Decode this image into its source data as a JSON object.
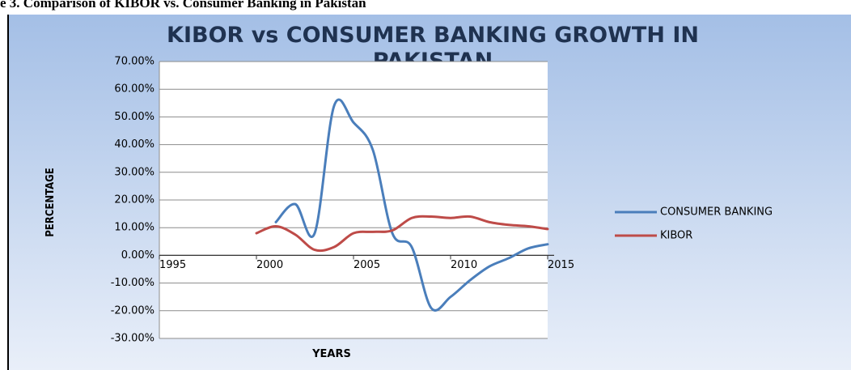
{
  "caption": "e 3. Comparison of KIBOR vs. Consumer Banking in Pakistan",
  "chart_data": {
    "type": "line",
    "title": [
      "KIBOR vs CONSUMER BANKING GROWTH IN",
      "PAKISTAN"
    ],
    "x_label": "YEARS",
    "y_label": "PERCENTAGE",
    "x": [
      2000,
      2001,
      2002,
      2003,
      2004,
      2005,
      2006,
      2007,
      2008,
      2009,
      2010,
      2011,
      2012,
      2013,
      2014,
      2015
    ],
    "series": [
      {
        "name": "CONSUMER BANKING",
        "color": "#4a7ebb",
        "values": [
          null,
          12,
          18.5,
          8,
          54,
          48,
          38,
          8,
          3,
          -19,
          -15,
          -9,
          -4,
          -1,
          2.5,
          4
        ]
      },
      {
        "name": "KIBOR",
        "color": "#be4b48",
        "values": [
          8,
          10.5,
          7.5,
          2,
          3,
          8,
          8.5,
          9,
          13.5,
          14,
          13.5,
          14,
          12,
          11,
          10.5,
          9.5
        ]
      }
    ],
    "xlim": [
      1995,
      2015
    ],
    "xticks": [
      1995,
      2000,
      2005,
      2010,
      2015
    ],
    "ylim": [
      -30,
      70
    ],
    "yticks": [
      {
        "value": 70,
        "label": "70.00%"
      },
      {
        "value": 60,
        "label": "60.00%"
      },
      {
        "value": 50,
        "label": "50.00%"
      },
      {
        "value": 40,
        "label": "40.00%"
      },
      {
        "value": 30,
        "label": "30.00%"
      },
      {
        "value": 20,
        "label": "20.00%"
      },
      {
        "value": 10,
        "label": "10.00%"
      },
      {
        "value": 0,
        "label": "0.00%"
      },
      {
        "value": -10,
        "label": "-10.00%"
      },
      {
        "value": -20,
        "label": "-20.00%"
      },
      {
        "value": -30,
        "label": "-30.00%"
      }
    ],
    "grid": true,
    "legend": "right"
  }
}
